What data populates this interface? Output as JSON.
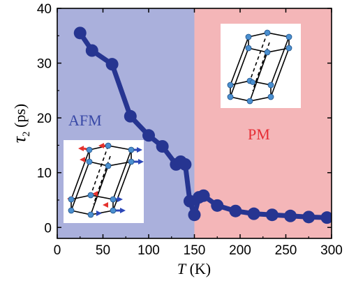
{
  "colors": {
    "afm_region": "#aab0dc",
    "pm_region": "#f4b6b8",
    "series": "#263591",
    "afm_text": "#3848a6",
    "pm_text": "#e62e36",
    "atom": "#4a8fcf",
    "spin_red": "#e5322d",
    "spin_blue": "#2d48b8"
  },
  "chart_data": {
    "type": "line",
    "title": "",
    "xlabel": "T (K)",
    "ylabel": "τ2 (ps)",
    "xlabel_parts": {
      "symbol": "T",
      "unit": " (K)"
    },
    "ylabel_parts": {
      "symbol": "τ",
      "subscript": "2",
      "unit": " (ps)"
    },
    "xlim": [
      0,
      300
    ],
    "ylim": [
      -2,
      40
    ],
    "xticks": [
      0,
      50,
      100,
      150,
      200,
      250,
      300
    ],
    "yticks": [
      0,
      10,
      20,
      30,
      40
    ],
    "regions": [
      {
        "label": "AFM",
        "x_range": [
          0,
          150
        ]
      },
      {
        "label": "PM",
        "x_range": [
          150,
          300
        ]
      }
    ],
    "series": [
      {
        "x": [
          25,
          38,
          60,
          80,
          100,
          115,
          130,
          135,
          140,
          145,
          150,
          155,
          160,
          175,
          195,
          215,
          235,
          255,
          275,
          295
        ],
        "y": [
          35.5,
          32.3,
          29.8,
          20.3,
          16.8,
          14.8,
          11.5,
          12.0,
          11.5,
          4.8,
          2.3,
          5.5,
          5.8,
          4.0,
          3.0,
          2.5,
          2.3,
          2.1,
          1.9,
          1.8
        ]
      }
    ]
  }
}
